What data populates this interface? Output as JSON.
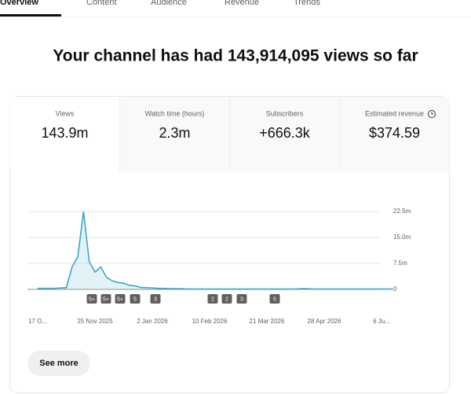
{
  "tabs": [
    "Overview",
    "Content",
    "Audience",
    "Revenue",
    "Trends"
  ],
  "headline": "Your channel has had 143,914,095 views so far",
  "metrics": [
    {
      "label": "Views",
      "value": "143.9m"
    },
    {
      "label": "Watch time (hours)",
      "value": "2.3m"
    },
    {
      "label": "Subscribers",
      "value": "+666.3k"
    },
    {
      "label": "Estimated revenue",
      "value": "$374.59"
    }
  ],
  "chart_data": {
    "type": "line",
    "categories": [
      "17 O...",
      null,
      null,
      null,
      null,
      null,
      null,
      null,
      null,
      null,
      "25 Nov 2025",
      null,
      null,
      null,
      null,
      null,
      null,
      null,
      null,
      null,
      "2 Jan 2026",
      null,
      null,
      null,
      null,
      null,
      null,
      null,
      null,
      null,
      "10 Feb 2026",
      null,
      null,
      null,
      null,
      null,
      null,
      null,
      null,
      null,
      "21 Mar 2026",
      null,
      null,
      null,
      null,
      null,
      null,
      null,
      null,
      null,
      "28 Apr 2026",
      null,
      null,
      null,
      null,
      null,
      null,
      null,
      null,
      null,
      "6 Ju...",
      null,
      null
    ],
    "series": [
      {
        "color": "#3ea6c9",
        "values": [
          0.3,
          0.3,
          0.3,
          0.3,
          0.4,
          0.5,
          6.5,
          9.5,
          22.5,
          8,
          5,
          6.5,
          3.5,
          2.5,
          2,
          1.8,
          1.2,
          1,
          0.6,
          0.5,
          0.4,
          0.3,
          0.3,
          0.2,
          0.2,
          0.2,
          0.1,
          0.1,
          0.1,
          0.1,
          0.1,
          0.1,
          0.1,
          0.1,
          0.1,
          0.1,
          0.1,
          0.1,
          0.1,
          0.1,
          0.1,
          0.1,
          0.1,
          0.1,
          0.1,
          0.1,
          0.2,
          0.2,
          0.1,
          0.1,
          0.1,
          0.1,
          0.1,
          0.1,
          0.1,
          0.1,
          0.1,
          0.1,
          0.1,
          0.1,
          0.1,
          0.1,
          0.1
        ]
      }
    ],
    "ylim": [
      0,
      22.5
    ],
    "yticks": [
      0,
      {
        "value": 7.5,
        "label": "7.5m"
      },
      {
        "value": 15,
        "label": "15.0m"
      },
      {
        "value": 22.5,
        "label": "22.5m"
      }
    ],
    "grid": true,
    "annotations": [
      "5+",
      "5+",
      "5+",
      "5",
      "3",
      "2",
      "2",
      "3",
      "5"
    ]
  },
  "button": "See more"
}
